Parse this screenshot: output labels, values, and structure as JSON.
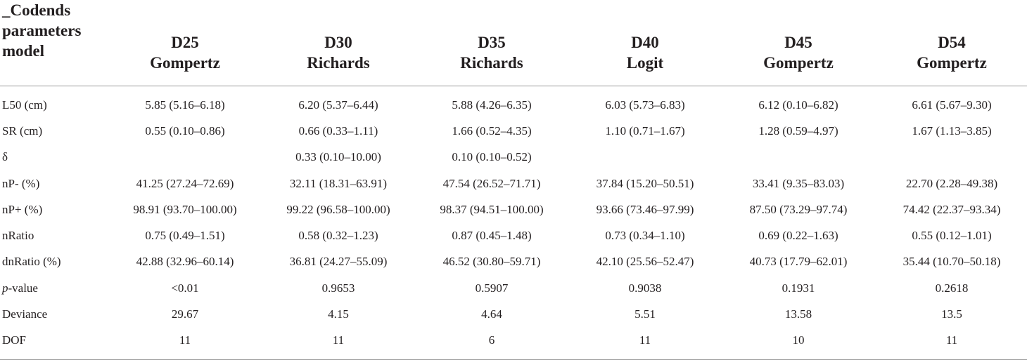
{
  "table": {
    "corner_header": [
      "_Codends",
      "parameters",
      "model"
    ],
    "columns": [
      {
        "codend": "D25",
        "model": "Gompertz"
      },
      {
        "codend": "D30",
        "model": "Richards"
      },
      {
        "codend": "D35",
        "model": "Richards"
      },
      {
        "codend": "D40",
        "model": "Logit"
      },
      {
        "codend": "D45",
        "model": "Gompertz"
      },
      {
        "codend": "D54",
        "model": "Gompertz"
      }
    ],
    "rows": [
      {
        "label": "L50 (cm)",
        "cells": [
          "5.85 (5.16–6.18)",
          "6.20 (5.37–6.44)",
          "5.88 (4.26–6.35)",
          "6.03 (5.73–6.83)",
          "6.12 (0.10–6.82)",
          "6.61 (5.67–9.30)"
        ]
      },
      {
        "label": "SR (cm)",
        "cells": [
          "0.55 (0.10–0.86)",
          "0.66 (0.33–1.11)",
          "1.66 (0.52–4.35)",
          "1.10 (0.71–1.67)",
          "1.28 (0.59–4.97)",
          "1.67 (1.13–3.85)"
        ]
      },
      {
        "label": "δ",
        "cells": [
          "",
          "0.33 (0.10–10.00)",
          "0.10 (0.10–0.52)",
          "",
          "",
          ""
        ]
      },
      {
        "label": "nP- (%)",
        "cells": [
          "41.25 (27.24–72.69)",
          "32.11 (18.31–63.91)",
          "47.54 (26.52–71.71)",
          "37.84 (15.20–50.51)",
          "33.41 (9.35–83.03)",
          "22.70 (2.28–49.38)"
        ]
      },
      {
        "label": "nP+ (%)",
        "cells": [
          "98.91 (93.70–100.00)",
          "99.22 (96.58–100.00)",
          "98.37 (94.51–100.00)",
          "93.66 (73.46–97.99)",
          "87.50 (73.29–97.74)",
          "74.42 (22.37–93.34)"
        ]
      },
      {
        "label": "nRatio",
        "cells": [
          "0.75 (0.49–1.51)",
          "0.58 (0.32–1.23)",
          "0.87 (0.45–1.48)",
          "0.73 (0.34–1.10)",
          "0.69 (0.22–1.63)",
          "0.55 (0.12–1.01)"
        ]
      },
      {
        "label": "dnRatio (%)",
        "cells": [
          "42.88 (32.96–60.14)",
          "36.81 (24.27–55.09)",
          "46.52 (30.80–59.71)",
          "42.10 (25.56–52.47)",
          "40.73 (17.79–62.01)",
          "35.44 (10.70–50.18)"
        ]
      },
      {
        "label_italic": "p",
        "label": "-value",
        "cells": [
          "<0.01",
          "0.9653",
          "0.5907",
          "0.9038",
          "0.1931",
          "0.2618"
        ]
      },
      {
        "label": "Deviance",
        "cells": [
          "29.67",
          "4.15",
          "4.64",
          "5.51",
          "13.58",
          "13.5"
        ]
      },
      {
        "label": "DOF",
        "cells": [
          "11",
          "11",
          "6",
          "11",
          "10",
          "11"
        ]
      }
    ]
  }
}
